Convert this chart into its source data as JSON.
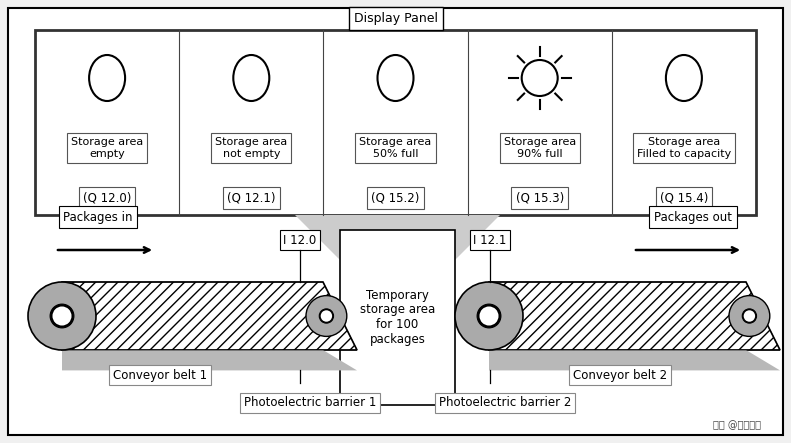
{
  "title": "Display Panel",
  "bg_color": "#f0f0f0",
  "indicators": [
    {
      "label": "Storage area\nempty",
      "code": "(Q 12.0)",
      "sun": false
    },
    {
      "label": "Storage area\nnot empty",
      "code": "(Q 12.1)",
      "sun": false
    },
    {
      "label": "Storage area\n50% full",
      "code": "(Q 15.2)",
      "sun": false
    },
    {
      "label": "Storage area\n90% full",
      "code": "(Q 15.3)",
      "sun": true
    },
    {
      "label": "Storage area\nFilled to capacity",
      "code": "(Q 15.4)",
      "sun": false
    }
  ],
  "storage_text": "Temporary\nstorage area\nfor 100\npackages",
  "watermark": "头条 @荣久科技",
  "packages_in": "Packages in",
  "packages_out": "Packages out",
  "conveyor1": "Conveyor belt 1",
  "conveyor2": "Conveyor belt 2",
  "barrier1": "Photoelectric barrier 1",
  "barrier2": "Photoelectric barrier 2",
  "sensor1": "I 12.0",
  "sensor2": "I 12.1"
}
